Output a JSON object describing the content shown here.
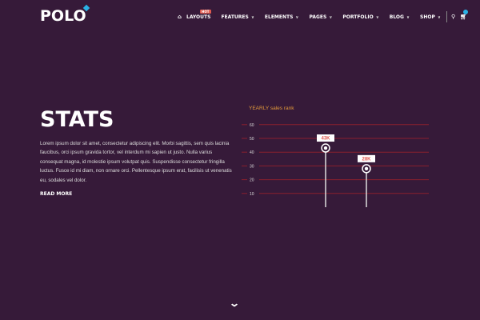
{
  "header": {
    "logo": "POLO",
    "nav": [
      {
        "label": "LAYOUTS",
        "badge": "HOT",
        "chevron": false
      },
      {
        "label": "FEATURES",
        "chevron": true
      },
      {
        "label": "ELEMENTS",
        "chevron": true
      },
      {
        "label": "PAGES",
        "chevron": true
      },
      {
        "label": "PORTFOLIO",
        "chevron": true
      },
      {
        "label": "BLOG",
        "chevron": true
      },
      {
        "label": "SHOP",
        "chevron": true
      }
    ],
    "icons": [
      "home-icon",
      "search-icon",
      "cart-icon"
    ]
  },
  "main": {
    "title": "STATS",
    "body": "Lorem ipsum dolor sit amet, consectetur adipiscing elit. Morbi sagittis, sem quis lacinia faucibus, orci ipsum gravida tortor, vel interdum mi sapien ut justo. Nulla varius consequat magna, id molestie ipsum volutpat quis. Suspendisse consectetur fringilla luctus. Fusce id mi diam, non ornare orci. Pellentesque ipsum erat, facilisis ut venenatis eu, sodales vel dolor.",
    "read_more": "READ MORE"
  },
  "chart_data": {
    "type": "scatter",
    "title": "YEARLY sales rank",
    "ylim": [
      0,
      60
    ],
    "yticks": [
      10,
      20,
      30,
      40,
      50,
      60
    ],
    "grid": true,
    "points": [
      {
        "value": 43,
        "label": "43K"
      },
      {
        "value": 28,
        "label": "28K"
      }
    ],
    "colors": {
      "grid": "#8a1f2e",
      "title": "#e39a3a",
      "label": "#e0574f"
    }
  },
  "scroll": {
    "icon": "chevron-down-icon"
  }
}
